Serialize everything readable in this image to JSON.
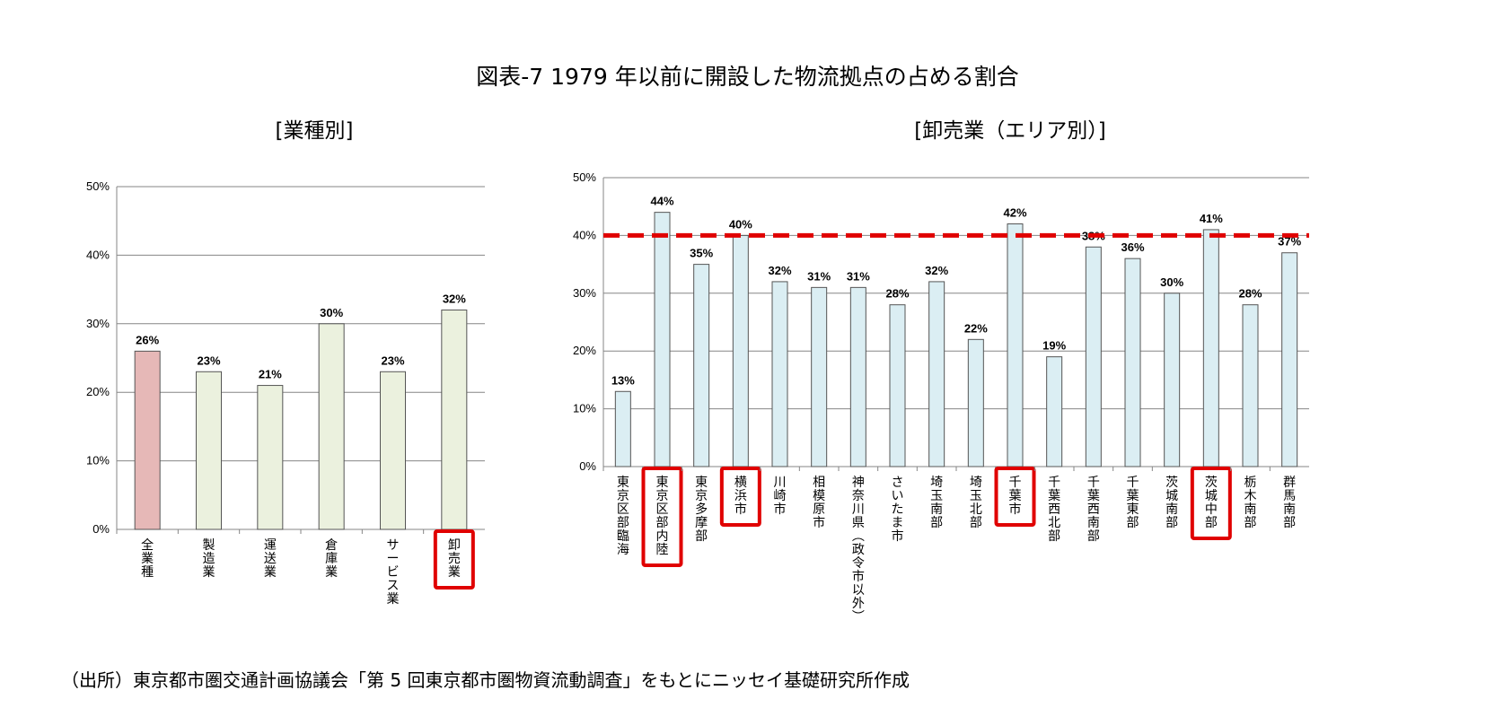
{
  "main_title": "図表-7  1979 年以前に開設した物流拠点の占める割合",
  "source_note": "（出所）東京都市圏交通計画協議会「第 5 回東京都市圏物資流動調査」をもとにニッセイ基礎研究所作成",
  "chart_data": [
    {
      "type": "bar",
      "title": "[業種別]",
      "categories": [
        "全業種",
        "製造業",
        "運送業",
        "倉庫業",
        "サービス業",
        "卸売業"
      ],
      "values": [
        26,
        23,
        21,
        30,
        23,
        32
      ],
      "value_labels": [
        "26%",
        "23%",
        "21%",
        "30%",
        "23%",
        "32%"
      ],
      "bar_colors": [
        "#e6b8b7",
        "#ebf1de",
        "#ebf1de",
        "#ebf1de",
        "#ebf1de",
        "#ebf1de"
      ],
      "highlighted": [
        false,
        false,
        false,
        false,
        false,
        true
      ],
      "ylim": [
        0,
        50
      ],
      "yticks": [
        "0%",
        "10%",
        "20%",
        "30%",
        "40%",
        "50%"
      ],
      "grid": true,
      "xlabel": "",
      "ylabel": ""
    },
    {
      "type": "bar",
      "title": "[卸売業（エリア別）]",
      "categories": [
        "東京区部臨海",
        "東京区部内陸",
        "東京多摩部",
        "横浜市",
        "川崎市",
        "相模原市",
        "神奈川県(政令市以外)",
        "さいたま市",
        "埼玉南部",
        "埼玉北部",
        "千葉市",
        "千葉西北部",
        "千葉西南部",
        "千葉東部",
        "茨城南部",
        "茨城中部",
        "栃木南部",
        "群馬南部"
      ],
      "values": [
        13,
        44,
        35,
        40,
        32,
        31,
        31,
        28,
        32,
        22,
        42,
        19,
        38,
        36,
        30,
        41,
        28,
        37
      ],
      "value_labels": [
        "13%",
        "44%",
        "35%",
        "40%",
        "32%",
        "31%",
        "31%",
        "28%",
        "32%",
        "22%",
        "42%",
        "19%",
        "38%",
        "36%",
        "30%",
        "41%",
        "28%",
        "37%"
      ],
      "bar_colors": [
        "#dbeef3"
      ],
      "highlighted": [
        false,
        true,
        false,
        true,
        false,
        false,
        false,
        false,
        false,
        false,
        true,
        false,
        false,
        false,
        false,
        true,
        false,
        false
      ],
      "reference_line": 40,
      "reference_color": "#e00000",
      "ylim": [
        0,
        50
      ],
      "yticks": [
        "0%",
        "10%",
        "20%",
        "30%",
        "40%",
        "50%"
      ],
      "grid": true,
      "xlabel": "",
      "ylabel": ""
    }
  ],
  "colors": {
    "highlight_box": "#e00000",
    "grid": "#868686",
    "bar_stroke": "#555555"
  }
}
